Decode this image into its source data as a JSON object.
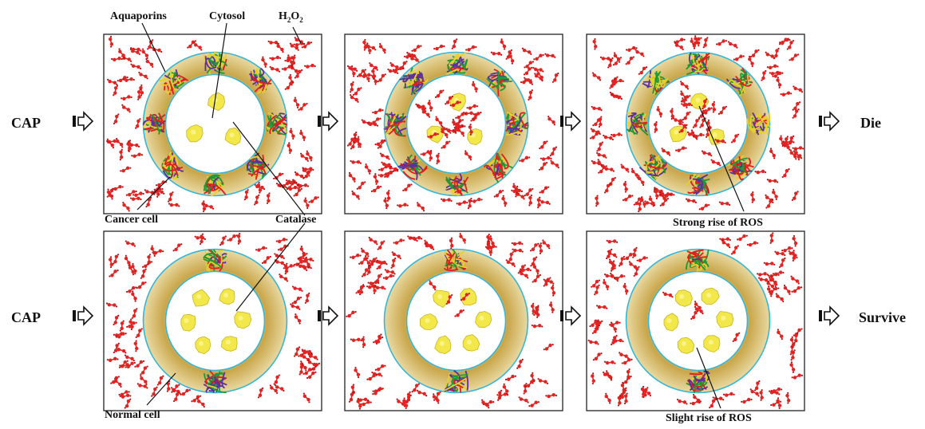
{
  "labels": {
    "aquaporins": "Aquaporins",
    "cytosol": "Cytosol",
    "h2o2_main": "H",
    "h2o2_sub1": "2",
    "h2o2_mid": "O",
    "h2o2_sub2": "2",
    "cap_top": "CAP",
    "cap_bottom": "CAP",
    "cancer_cell": "Cancer cell",
    "catalase": "Catalase",
    "strong_rise": "Strong rise of ROS",
    "normal_cell": "Normal cell",
    "slight_rise": "Slight rise of ROS",
    "outcome_top": "Die",
    "outcome_bottom": "Survive"
  },
  "colors": {
    "membrane": "#c9a64a",
    "membrane_light": "#e9d9a2",
    "membrane_outline": "#35b6d6",
    "h2o2": "#e32222",
    "h2o2_h": "#bb1111",
    "catalase": "#f2e84a",
    "catalase_edge": "#c8b426",
    "aquaporin_red": "#e01e1e",
    "aquaporin_green": "#1c9a35",
    "aquaporin_purple": "#5a2f9e",
    "aquaporin_yellow": "#e7d02a"
  },
  "rows": [
    {
      "cell_type": "cancer",
      "panels": [
        {
          "stage": 1,
          "h2o2_in_cytosol": 0,
          "catalase": 3,
          "aquaporins": 8
        },
        {
          "stage": 2,
          "h2o2_in_cytosol": 30,
          "catalase": 3,
          "aquaporins": 8
        },
        {
          "stage": 3,
          "h2o2_in_cytosol": 30,
          "catalase": 3,
          "aquaporins": 8
        }
      ]
    },
    {
      "cell_type": "normal",
      "panels": [
        {
          "stage": 1,
          "h2o2_in_cytosol": 0,
          "catalase": 6,
          "aquaporins": 2
        },
        {
          "stage": 2,
          "h2o2_in_cytosol": 4,
          "catalase": 6,
          "aquaporins": 2
        },
        {
          "stage": 3,
          "h2o2_in_cytosol": 5,
          "catalase": 6,
          "aquaporins": 2
        }
      ]
    }
  ]
}
